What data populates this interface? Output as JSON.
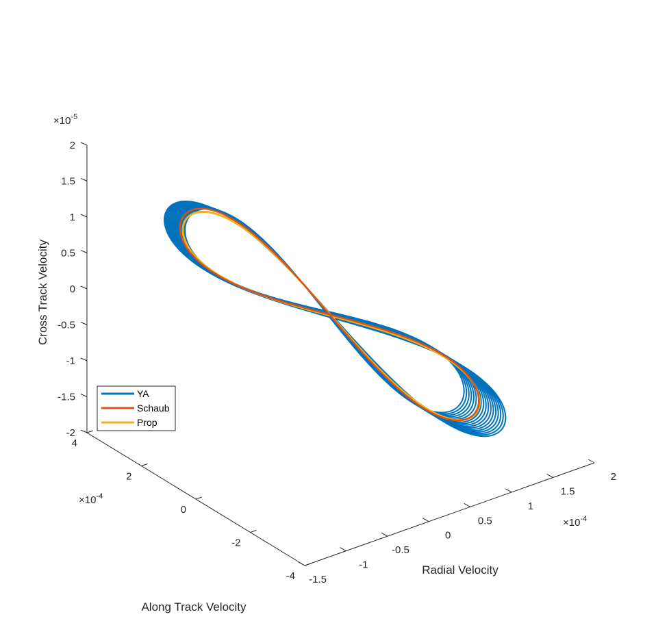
{
  "chart_data": {
    "type": "line",
    "projection": "3d",
    "xlabel": "Radial Velocity",
    "ylabel": "Along Track Velocity",
    "zlabel": "Cross Track Velocity",
    "x_exponent_label": "×10",
    "x_exponent": "-4",
    "y_exponent_label": "×10",
    "y_exponent": "-4",
    "z_exponent_label": "×10",
    "z_exponent": "-5",
    "xlim": [
      -1.5,
      2
    ],
    "ylim": [
      -4,
      4
    ],
    "zlim": [
      -2,
      2
    ],
    "x_tick_labels": [
      "-1.5",
      "-1",
      "-0.5",
      "0",
      "0.5",
      "1",
      "1.5",
      "2"
    ],
    "y_tick_labels": [
      "-4",
      "-2",
      "0",
      "2",
      "4"
    ],
    "z_tick_labels": [
      "-2",
      "-1.5",
      "-1",
      "-0.5",
      "0",
      "0.5",
      "1",
      "1.5",
      "2"
    ],
    "legend_position": "lower-left",
    "series": [
      {
        "name": "YA",
        "color": "#0072BD",
        "description_values": {
          "x_range": [
            -1.5,
            2.0
          ],
          "y_range": [
            -4,
            4
          ],
          "z_range": [
            -1.8,
            1.1
          ]
        }
      },
      {
        "name": "Schaub",
        "color": "#D95319"
      },
      {
        "name": "Prop",
        "color": "#EDB120"
      }
    ]
  }
}
